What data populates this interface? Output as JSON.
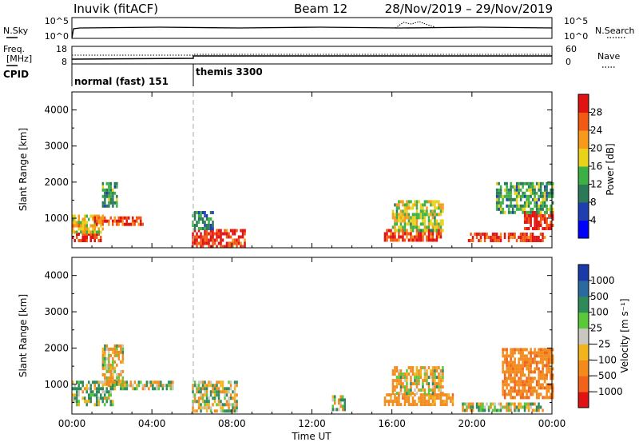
{
  "header": {
    "station": "Inuvik (fitACF)",
    "beam": "Beam 12",
    "dates": "28/Nov/2019 – 29/Nov/2019"
  },
  "top_panels": {
    "nsky_label": "N.Sky",
    "nsky_ticks": [
      "10^5",
      "10^0"
    ],
    "nsearch_ticks": [
      "10^5",
      "10^0"
    ],
    "nsearch_label": "N.Search",
    "freq_label_1": "Freq.",
    "freq_label_2": "[MHz]",
    "freq_ticks": [
      "18",
      "8"
    ],
    "nave_ticks": [
      "60",
      "0"
    ],
    "nave_label": "Nave",
    "cpid_label": "CPID",
    "cpid_1": "normal (fast) 151",
    "cpid_2": "themis 3300"
  },
  "axes": {
    "ylabel": "Slant Range [km]",
    "y_ticks": [
      "4000",
      "3000",
      "2000",
      "1000"
    ],
    "x_ticks": [
      "00:00",
      "04:00",
      "08:00",
      "12:00",
      "16:00",
      "20:00",
      "00:00"
    ],
    "xlabel": "Time UT"
  },
  "colorbars": {
    "power": {
      "label": "Power [dB]",
      "ticks": [
        "28",
        "24",
        "20",
        "16",
        "12",
        "8",
        "4"
      ],
      "colors": [
        "#0000ff",
        "#1f3fb0",
        "#2a7a5a",
        "#3cb044",
        "#e8d21a",
        "#f79a1a",
        "#f25a14",
        "#e01212"
      ]
    },
    "velocity": {
      "label": "Velocity [m s⁻¹]",
      "ticks": [
        "1000",
        "500",
        "100",
        "25",
        "−25",
        "−100",
        "−500",
        "−1000"
      ],
      "colors": [
        "#1a3aa8",
        "#2a6aa0",
        "#2f8a5a",
        "#5ac83a",
        "#c8c8c0",
        "#f2b41c",
        "#f28a1c",
        "#f2621a",
        "#e01212"
      ]
    }
  },
  "chart_data": [
    {
      "type": "heatmap",
      "title": "Power",
      "xlabel": "Time UT",
      "ylabel": "Slant Range [km]",
      "x_range": [
        "00:00",
        "00:00 (+24h)"
      ],
      "ylim": [
        180,
        4500
      ],
      "value_label": "Power [dB]",
      "value_range": [
        0,
        30
      ],
      "regions": [
        {
          "t_start_h": 0.0,
          "t_end_h": 1.4,
          "range_km": [
            350,
            600
          ],
          "value_db": 28
        },
        {
          "t_start_h": 0.0,
          "t_end_h": 1.5,
          "range_km": [
            600,
            1100
          ],
          "value_db": 18
        },
        {
          "t_start_h": 1.0,
          "t_end_h": 3.5,
          "range_km": [
            800,
            1050
          ],
          "value_db": 25
        },
        {
          "t_start_h": 1.5,
          "t_end_h": 2.2,
          "range_km": [
            1300,
            2000
          ],
          "value_db": 12
        },
        {
          "t_start_h": 6.0,
          "t_end_h": 8.6,
          "range_km": [
            200,
            700
          ],
          "value_db": 27
        },
        {
          "t_start_h": 6.0,
          "t_end_h": 7.0,
          "range_km": [
            700,
            1200
          ],
          "value_db": 10
        },
        {
          "t_start_h": 15.6,
          "t_end_h": 18.4,
          "range_km": [
            350,
            700
          ],
          "value_db": 27
        },
        {
          "t_start_h": 16.0,
          "t_end_h": 18.5,
          "range_km": [
            700,
            1500
          ],
          "value_db": 16
        },
        {
          "t_start_h": 19.8,
          "t_end_h": 23.6,
          "range_km": [
            350,
            600
          ],
          "value_db": 26
        },
        {
          "t_start_h": 22.6,
          "t_end_h": 24.0,
          "range_km": [
            700,
            1200
          ],
          "value_db": 27
        },
        {
          "t_start_h": 21.2,
          "t_end_h": 24.0,
          "range_km": [
            1200,
            2000
          ],
          "value_db": 12
        }
      ]
    },
    {
      "type": "heatmap",
      "title": "Velocity",
      "xlabel": "Time UT",
      "ylabel": "Slant Range [km]",
      "x_range": [
        "00:00",
        "00:00 (+24h)"
      ],
      "ylim": [
        180,
        4500
      ],
      "value_label": "Velocity [m s^-1]",
      "value_range": [
        -1000,
        1000
      ],
      "regions": [
        {
          "t_start_h": 0.0,
          "t_end_h": 2.0,
          "range_km": [
            400,
            1100
          ],
          "value_ms": 100
        },
        {
          "t_start_h": 1.5,
          "t_end_h": 2.5,
          "range_km": [
            1000,
            2100
          ],
          "value_ms": -100
        },
        {
          "t_start_h": 2.0,
          "t_end_h": 5.0,
          "range_km": [
            900,
            1100
          ],
          "value_ms": 0
        },
        {
          "t_start_h": 6.0,
          "t_end_h": 8.2,
          "range_km": [
            300,
            1100
          ],
          "value_ms": 0
        },
        {
          "t_start_h": 13.0,
          "t_end_h": 13.6,
          "range_km": [
            300,
            700
          ],
          "value_ms": 0
        },
        {
          "t_start_h": 15.6,
          "t_end_h": 19.0,
          "range_km": [
            400,
            750
          ],
          "value_ms": -300
        },
        {
          "t_start_h": 16.0,
          "t_end_h": 18.5,
          "range_km": [
            750,
            1500
          ],
          "value_ms": -100
        },
        {
          "t_start_h": 19.5,
          "t_end_h": 23.5,
          "range_km": [
            300,
            500
          ],
          "value_ms": 0
        },
        {
          "t_start_h": 21.5,
          "t_end_h": 24.0,
          "range_km": [
            600,
            2000
          ],
          "value_ms": -400
        }
      ]
    }
  ]
}
